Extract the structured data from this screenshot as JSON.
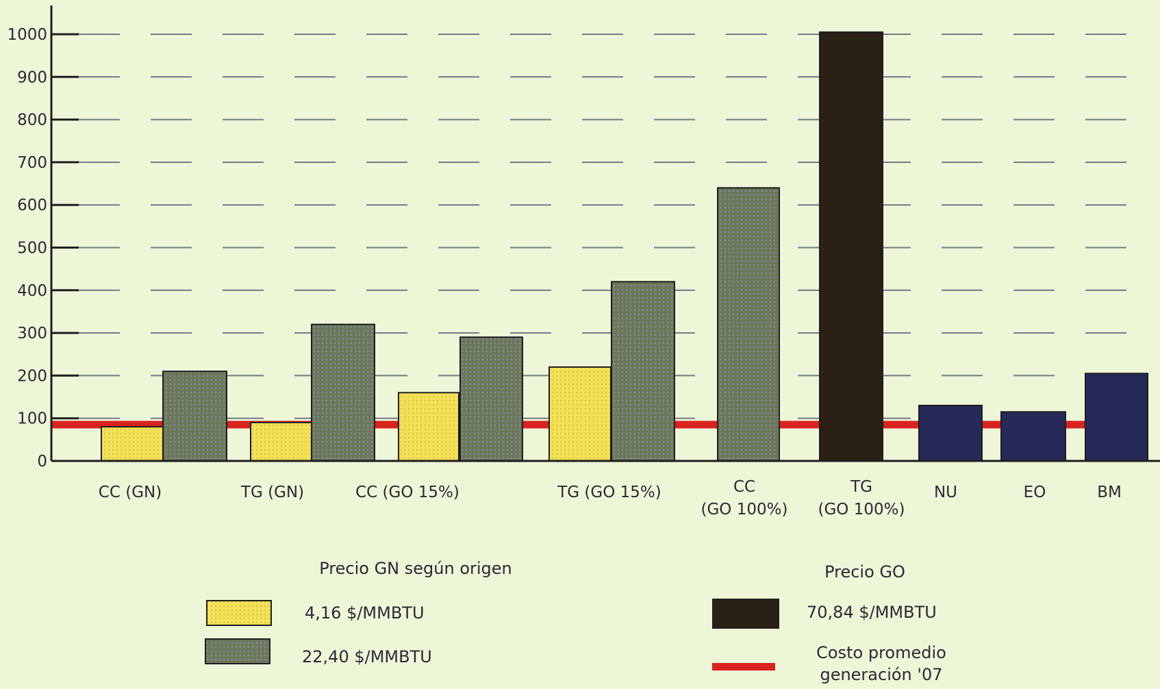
{
  "chart_data": {
    "type": "bar",
    "categories": [
      [
        "CC (GN)"
      ],
      [
        "TG (GN)"
      ],
      [
        "CC (GO 15%)"
      ],
      [
        "TG (GO 15%)"
      ],
      [
        "CC",
        "(GO 100%)"
      ],
      [
        "TG",
        "(GO 100%)"
      ],
      [
        "NU"
      ],
      [
        "EO"
      ],
      [
        "BM"
      ]
    ],
    "series": [
      {
        "name": "4,16 $/MMBTU",
        "color": "#f0de4a",
        "values": [
          80,
          90,
          160,
          220,
          null,
          null,
          null,
          null,
          null
        ]
      },
      {
        "name": "22,40 $/MMBTU",
        "color": "#6e7a58",
        "values": [
          210,
          null,
          320,
          null,
          290,
          420,
          null,
          null,
          null
        ]
      },
      {
        "name": "70,84 $/MMBTU",
        "color": "#2a2015",
        "values": [
          null,
          null,
          null,
          null,
          640,
          1005,
          null,
          null,
          null
        ]
      },
      {
        "name": "",
        "color": "#252a58",
        "values": [
          null,
          null,
          null,
          null,
          null,
          null,
          130,
          115,
          205
        ]
      }
    ],
    "reference_line": {
      "value": 85,
      "color": "#d8231f"
    },
    "yticks": [
      0,
      100,
      200,
      300,
      400,
      500,
      600,
      700,
      800,
      900,
      1000
    ],
    "ylim": [
      0,
      1000
    ],
    "grid": "dashed horizontal",
    "legend": {
      "left_title": "Precio GN según origen",
      "right_title": "Precio GO",
      "items": [
        {
          "label": "4,16 $/MMBTU",
          "color": "#f0de4a",
          "kind": "box"
        },
        {
          "label": "22,40 $/MMBTU",
          "color": "#6e7a58",
          "kind": "box"
        },
        {
          "label": "70,84 $/MMBTU",
          "color": "#2a2015",
          "kind": "box"
        },
        {
          "label": "Costo promedio generación '07",
          "lines": [
            "Costo promedio",
            "generación '07"
          ],
          "color": "#d8231f",
          "kind": "line"
        }
      ]
    },
    "xlabel": "",
    "ylabel": "",
    "title": ""
  }
}
